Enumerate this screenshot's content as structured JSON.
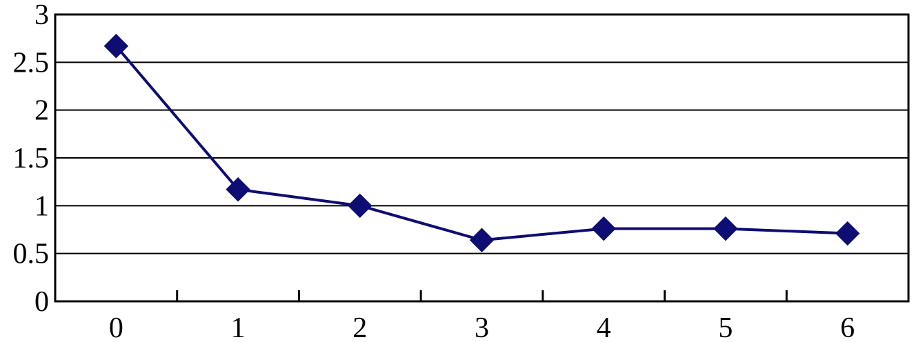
{
  "chart_data": {
    "type": "line",
    "title": "",
    "xlabel": "",
    "ylabel": "",
    "x": [
      0,
      1,
      2,
      3,
      4,
      5,
      6
    ],
    "x_tick_labels": [
      "0",
      "1",
      "2",
      "3",
      "4",
      "5",
      "6"
    ],
    "y_tick_values": [
      0,
      0.5,
      1,
      1.5,
      2,
      2.5,
      3
    ],
    "y_tick_labels": [
      "0",
      "0.5",
      "1",
      "1.5",
      "2",
      "2.5",
      "3"
    ],
    "ylim": [
      0,
      3
    ],
    "grid": "horizontal",
    "legend": "none",
    "series": [
      {
        "marker": "diamond",
        "values": [
          2.67,
          1.17,
          1.0,
          0.64,
          0.76,
          0.76,
          0.71
        ]
      }
    ]
  },
  "colors": {
    "series": "#0d0d73",
    "grid": "#000000",
    "axis": "#000000",
    "background": "#ffffff"
  }
}
